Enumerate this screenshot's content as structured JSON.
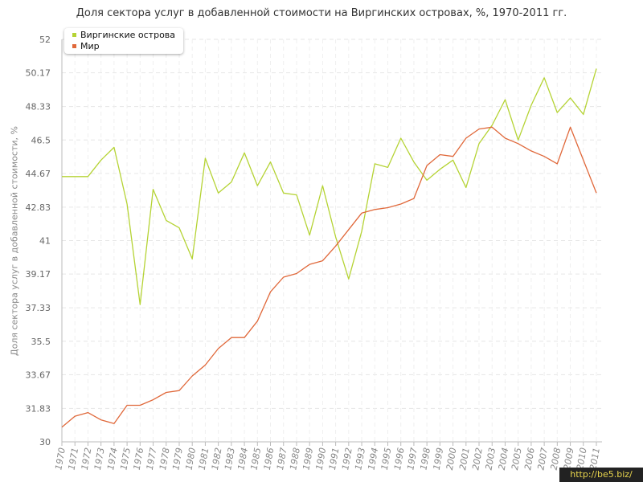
{
  "chart_data": {
    "type": "line",
    "title": "Доля сектора услуг в добавленной стоимости на Виргинских островах, %, 1970-2011 гг.",
    "ylabel": "Доля сектора услуг в добавленной стоимости, %",
    "xlabel": "",
    "ylim": [
      30,
      52
    ],
    "yticks": [
      "30",
      "31.83",
      "33.67",
      "35.5",
      "37.33",
      "39.17",
      "41",
      "42.83",
      "44.67",
      "46.5",
      "48.33",
      "50.17",
      "52"
    ],
    "categories": [
      "1970",
      "1971",
      "1972",
      "1973",
      "1974",
      "1975",
      "1976",
      "1977",
      "1978",
      "1979",
      "1980",
      "1981",
      "1982",
      "1983",
      "1984",
      "1985",
      "1986",
      "1987",
      "1988",
      "1989",
      "1990",
      "1991",
      "1992",
      "1993",
      "1994",
      "1995",
      "1996",
      "1997",
      "1998",
      "1999",
      "2000",
      "2001",
      "2002",
      "2003",
      "2004",
      "2005",
      "2006",
      "2007",
      "2008",
      "2009",
      "2010",
      "2011"
    ],
    "grid": true,
    "legend_position": "top-left",
    "series": [
      {
        "name": "Виргинские острова",
        "color": "#b5d334",
        "values": [
          44.5,
          44.5,
          44.5,
          45.4,
          46.1,
          43.0,
          37.5,
          43.8,
          42.1,
          41.7,
          40.0,
          45.5,
          43.6,
          44.2,
          45.8,
          44.0,
          45.3,
          43.6,
          43.5,
          41.3,
          44.0,
          41.2,
          38.9,
          41.5,
          45.2,
          45.0,
          46.6,
          45.3,
          44.3,
          44.9,
          45.4,
          43.9,
          46.3,
          47.3,
          48.7,
          46.5,
          48.4,
          49.9,
          48.0,
          48.8,
          47.9,
          50.4
        ]
      },
      {
        "name": "Мир",
        "color": "#e0683a",
        "values": [
          30.8,
          31.4,
          31.6,
          31.2,
          31.0,
          32.0,
          32.0,
          32.3,
          32.7,
          32.8,
          33.6,
          34.2,
          35.1,
          35.7,
          35.7,
          36.6,
          38.2,
          39.0,
          39.2,
          39.7,
          39.9,
          40.7,
          41.6,
          42.5,
          42.7,
          42.8,
          43.0,
          43.3,
          45.1,
          45.7,
          45.6,
          46.6,
          47.1,
          47.2,
          46.6,
          46.3,
          45.9,
          45.6,
          45.2,
          47.2,
          45.4,
          43.6
        ]
      }
    ]
  },
  "watermark": "http://be5.biz/"
}
